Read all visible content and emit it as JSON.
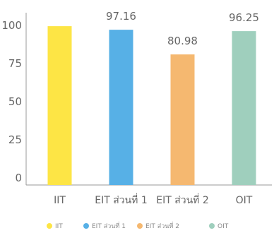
{
  "chart_data": {
    "type": "bar",
    "categories": [
      "IIT",
      "EIT ส่วนที่ 1",
      "EIT ส่วนที่ 2",
      "OIT"
    ],
    "values": [
      99.5,
      97.16,
      80.98,
      96.25
    ],
    "data_labels": [
      "",
      "97.16",
      "80.98",
      "96.25"
    ],
    "colors": [
      "#fde545",
      "#57b0e6",
      "#f5b870",
      "#9fcfbd"
    ],
    "ylim": [
      0,
      100
    ],
    "yticks": [
      "100",
      "75",
      "50",
      "25",
      "0"
    ],
    "grid": false,
    "legend_position": "bottom",
    "legend": [
      {
        "name": "IIT",
        "color": "#fde545"
      },
      {
        "name": "EIT ส่วนที่ 1",
        "color": "#57b0e6"
      },
      {
        "name": "EIT ส่วนที่ 2",
        "color": "#f5b870"
      },
      {
        "name": "OIT",
        "color": "#9fcfbd"
      }
    ]
  }
}
